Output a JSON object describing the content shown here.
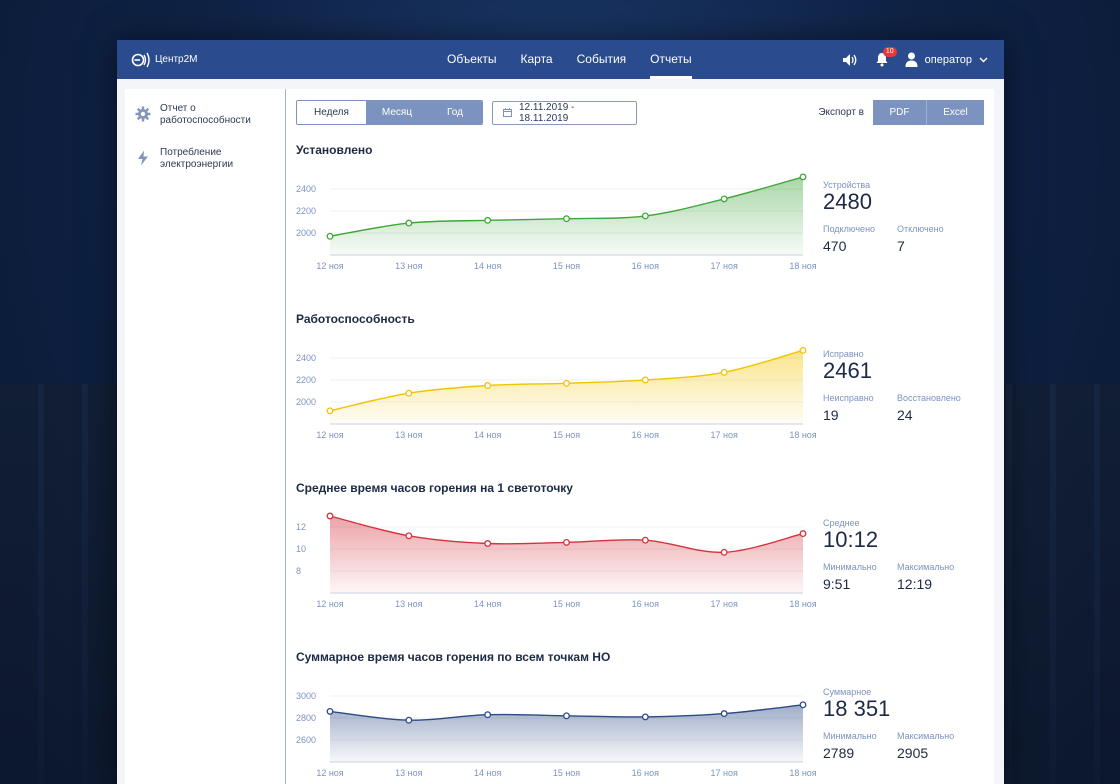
{
  "app": {
    "name": "Центр2М"
  },
  "nav": [
    "Объекты",
    "Карта",
    "События",
    "Отчеты"
  ],
  "notifications": {
    "count": "10"
  },
  "user": {
    "name": "оператор"
  },
  "sidebar": [
    {
      "label": "Отчет о работоспособности",
      "icon": "gear-icon"
    },
    {
      "label": "Потребление электроэнергии",
      "icon": "lightning-icon"
    }
  ],
  "period": {
    "options": [
      "Неделя",
      "Месяц",
      "Год"
    ],
    "selected": "Неделя"
  },
  "date_range": "12.11.2019 - 18.11.2019",
  "export": {
    "label": "Экспорт в",
    "buttons": [
      "PDF",
      "Excel"
    ]
  },
  "colors": {
    "green": "#3fa63a",
    "yellow": "#f2c400",
    "red": "#d4323d",
    "navy": "#2b4a86",
    "accent": "#7d93bf"
  },
  "chart_data": [
    {
      "type": "area",
      "title": "Установлено",
      "x": [
        "12 ноя",
        "13 ноя",
        "14 ноя",
        "15 ноя",
        "16 ноя",
        "17 ноя",
        "18 ноя"
      ],
      "values": [
        1970,
        2090,
        2115,
        2130,
        2155,
        2310,
        2510
      ],
      "yticks": [
        2000,
        2200,
        2400
      ],
      "ylim": [
        1800,
        2600
      ],
      "stats": {
        "main_label": "Устройства",
        "main_value": "2480",
        "sub": [
          {
            "label": "Подключено",
            "value": "470"
          },
          {
            "label": "Отключено",
            "value": "7"
          }
        ]
      }
    },
    {
      "type": "area",
      "title": "Работоспособность",
      "x": [
        "12 ноя",
        "13 ноя",
        "14 ноя",
        "15 ноя",
        "16 ноя",
        "17 ноя",
        "18 ноя"
      ],
      "values": [
        1920,
        2080,
        2150,
        2170,
        2200,
        2270,
        2470
      ],
      "yticks": [
        2000,
        2200,
        2400
      ],
      "ylim": [
        1800,
        2600
      ],
      "stats": {
        "main_label": "Исправно",
        "main_value": "2461",
        "sub": [
          {
            "label": "Неисправно",
            "value": "19"
          },
          {
            "label": "Восстановлено",
            "value": "24"
          }
        ]
      }
    },
    {
      "type": "area",
      "title": "Среднее время часов горения на 1 светоточку",
      "x": [
        "12 ноя",
        "13 ноя",
        "14 ноя",
        "15 ноя",
        "16 ноя",
        "17 ноя",
        "18 ноя"
      ],
      "values": [
        13.0,
        11.2,
        10.5,
        10.6,
        10.8,
        9.7,
        11.4
      ],
      "yticks": [
        8,
        10,
        12
      ],
      "ylim": [
        6,
        14
      ],
      "stats": {
        "main_label": "Среднее",
        "main_value": "10:12",
        "sub": [
          {
            "label": "Минимально",
            "value": "9:51"
          },
          {
            "label": "Максимально",
            "value": "12:19"
          }
        ]
      }
    },
    {
      "type": "area",
      "title": "Суммарное время часов горения по всем точкам НО",
      "x": [
        "12 ноя",
        "13 ноя",
        "14 ноя",
        "15 ноя",
        "16 ноя",
        "17 ноя",
        "18 ноя"
      ],
      "values": [
        2860,
        2780,
        2830,
        2820,
        2810,
        2840,
        2920
      ],
      "yticks": [
        2600,
        2800,
        3000
      ],
      "ylim": [
        2400,
        3200
      ],
      "stats": {
        "main_label": "Суммарное",
        "main_value": "18 351",
        "sub": [
          {
            "label": "Минимально",
            "value": "2789"
          },
          {
            "label": "Максимально",
            "value": "2905"
          }
        ]
      }
    }
  ]
}
